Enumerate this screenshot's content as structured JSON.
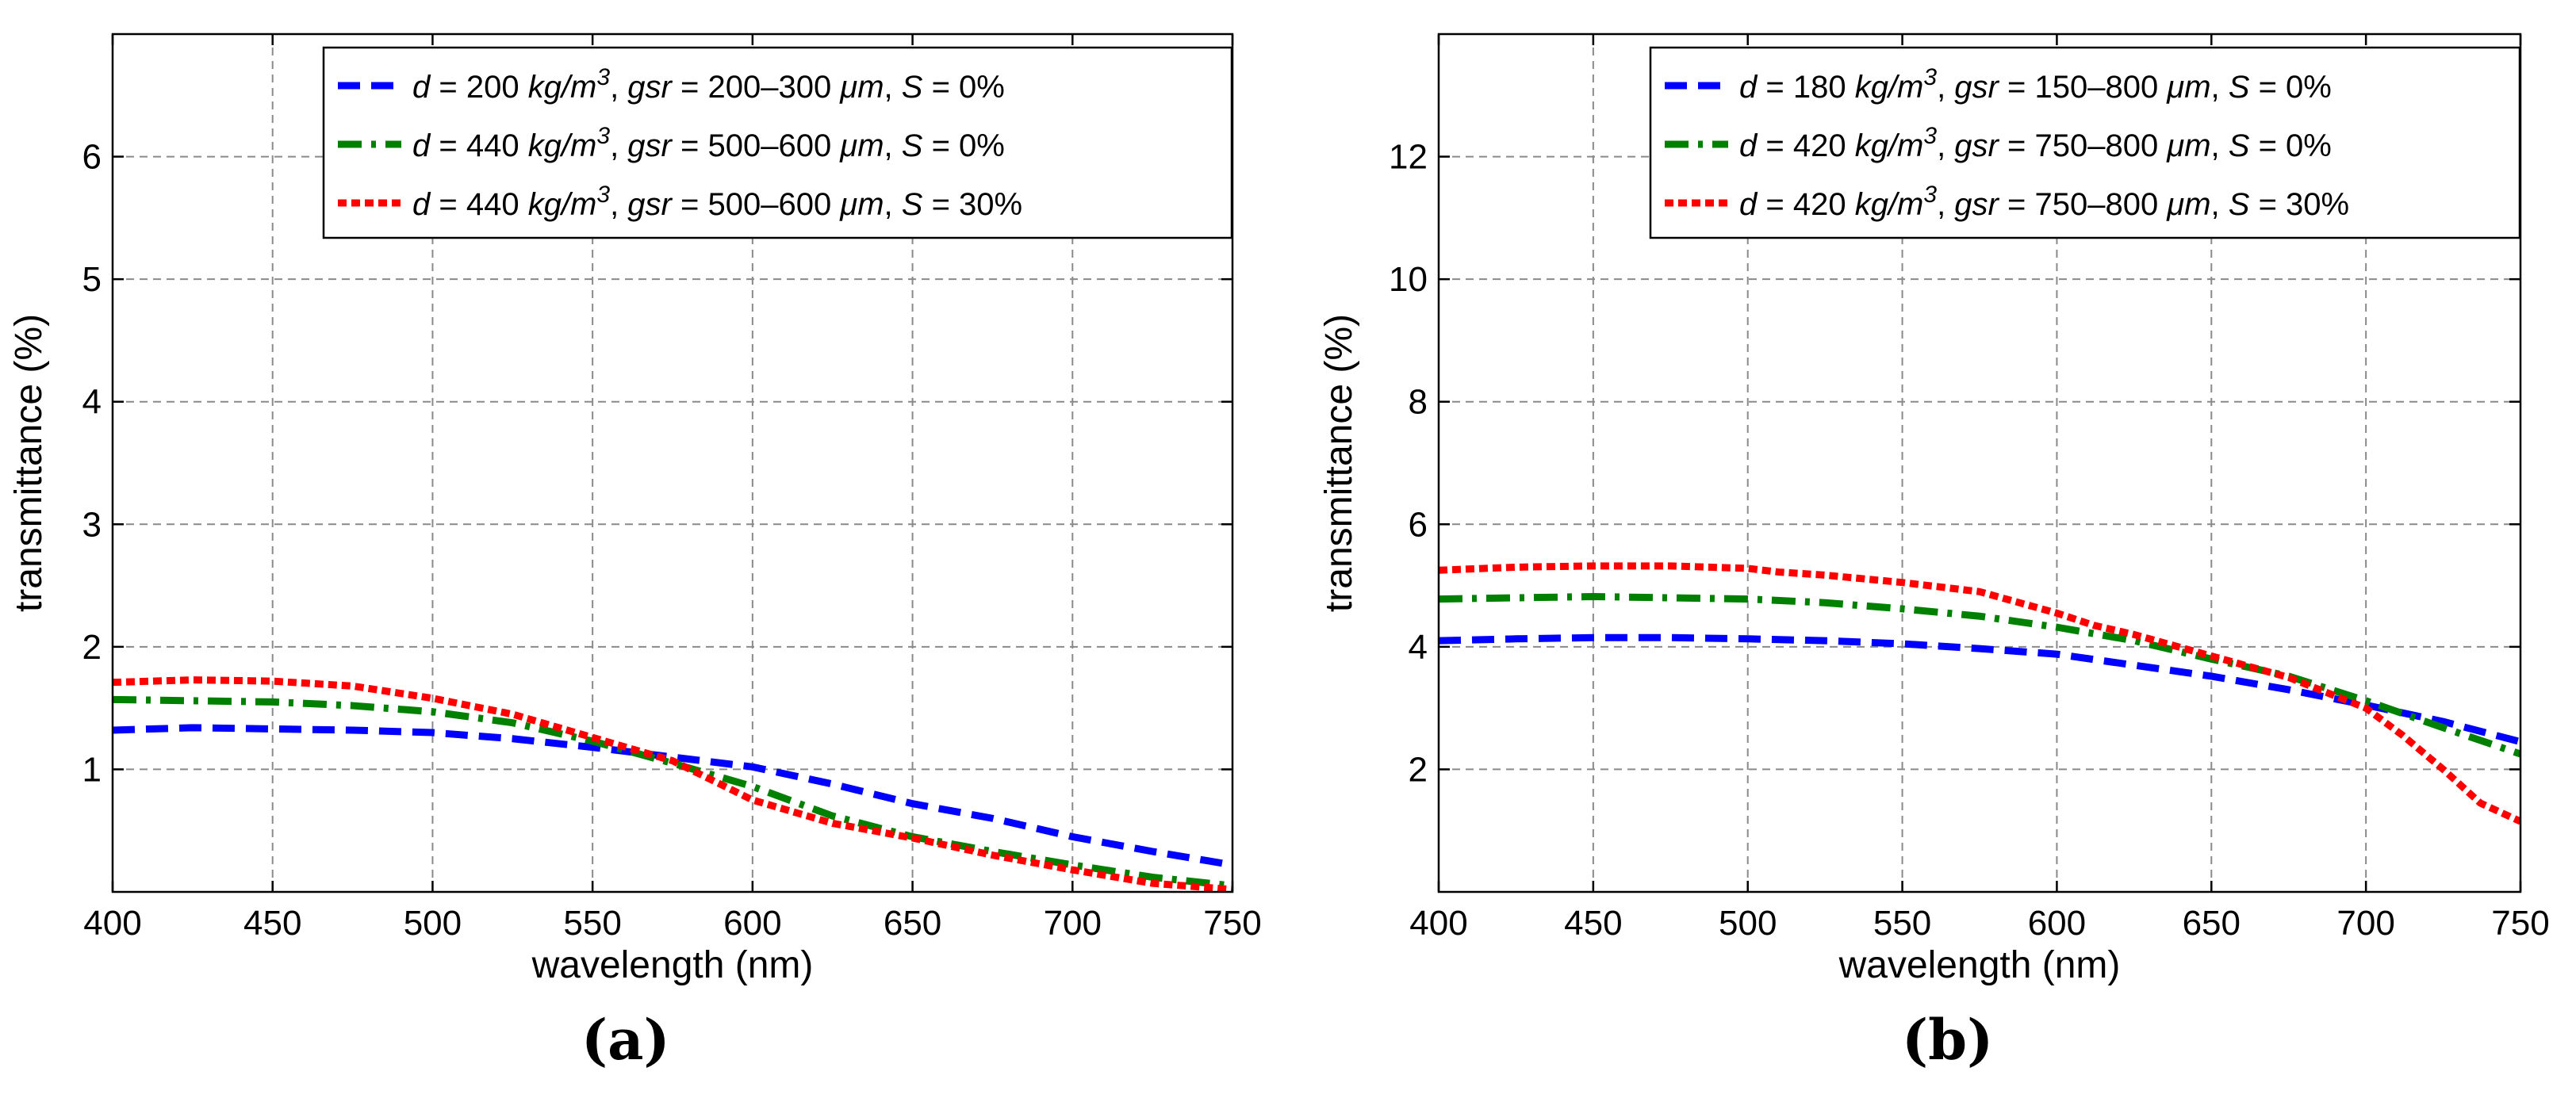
{
  "chart_data": [
    {
      "panel": "a",
      "type": "line",
      "caption": "(a)",
      "xlabel": "wavelength (nm)",
      "ylabel": "transmittance (%)",
      "xlim": [
        400,
        750
      ],
      "ylim": [
        0,
        7
      ],
      "xticks": [
        400,
        450,
        500,
        550,
        600,
        650,
        700,
        750
      ],
      "yticks": [
        1,
        2,
        3,
        4,
        5,
        6
      ],
      "grid": true,
      "legend_position": "top-right",
      "series": [
        {
          "legend": {
            "d": "200",
            "gsr": "200–300",
            "S": "0%"
          },
          "color": "#0000ff",
          "style": "dashed",
          "x": [
            400,
            425,
            450,
            475,
            500,
            525,
            550,
            575,
            600,
            625,
            650,
            675,
            700,
            725,
            750
          ],
          "y": [
            1.32,
            1.34,
            1.33,
            1.32,
            1.3,
            1.25,
            1.18,
            1.1,
            1.02,
            0.88,
            0.72,
            0.6,
            0.45,
            0.33,
            0.22
          ]
        },
        {
          "legend": {
            "d": "440",
            "gsr": "500–600",
            "S": "0%"
          },
          "color": "#008000",
          "style": "dashdot",
          "x": [
            400,
            425,
            450,
            475,
            500,
            525,
            550,
            575,
            600,
            625,
            650,
            675,
            700,
            725,
            750
          ],
          "y": [
            1.57,
            1.56,
            1.55,
            1.52,
            1.47,
            1.38,
            1.23,
            1.05,
            0.86,
            0.62,
            0.45,
            0.33,
            0.22,
            0.12,
            0.05
          ]
        },
        {
          "legend": {
            "d": "440",
            "gsr": "500–600",
            "S": "30%"
          },
          "color": "#ff0000",
          "style": "dotted",
          "x": [
            400,
            425,
            450,
            475,
            500,
            525,
            550,
            575,
            600,
            625,
            650,
            675,
            700,
            725,
            750
          ],
          "y": [
            1.71,
            1.73,
            1.72,
            1.68,
            1.58,
            1.45,
            1.26,
            1.07,
            0.75,
            0.56,
            0.44,
            0.3,
            0.18,
            0.07,
            0.02
          ]
        }
      ]
    },
    {
      "panel": "b",
      "type": "line",
      "caption": "(b)",
      "xlabel": "wavelength (nm)",
      "ylabel": "transmittance (%)",
      "xlim": [
        400,
        750
      ],
      "ylim": [
        0,
        14
      ],
      "xticks": [
        400,
        450,
        500,
        550,
        600,
        650,
        700,
        750
      ],
      "yticks": [
        2,
        4,
        6,
        8,
        10,
        12
      ],
      "grid": true,
      "legend_position": "top-right",
      "series": [
        {
          "legend": {
            "d": "180",
            "gsr": "150–800",
            "S": "0%"
          },
          "color": "#0000ff",
          "style": "dashed",
          "x": [
            400,
            425,
            450,
            475,
            500,
            525,
            550,
            575,
            600,
            625,
            650,
            675,
            700,
            725,
            750
          ],
          "y": [
            4.1,
            4.13,
            4.15,
            4.15,
            4.13,
            4.1,
            4.05,
            3.97,
            3.88,
            3.7,
            3.52,
            3.3,
            3.05,
            2.78,
            2.45
          ]
        },
        {
          "legend": {
            "d": "420",
            "gsr": "750–800",
            "S": "0%"
          },
          "color": "#008000",
          "style": "dashdot",
          "x": [
            400,
            425,
            450,
            475,
            500,
            525,
            550,
            575,
            600,
            625,
            650,
            675,
            700,
            725,
            750
          ],
          "y": [
            4.78,
            4.8,
            4.82,
            4.8,
            4.78,
            4.72,
            4.62,
            4.5,
            4.32,
            4.1,
            3.8,
            3.52,
            3.12,
            2.68,
            2.25
          ]
        },
        {
          "legend": {
            "d": "420",
            "gsr": "750–800",
            "S": "30%"
          },
          "color": "#ff0000",
          "style": "dotted",
          "x": [
            400,
            425,
            450,
            475,
            500,
            510,
            525,
            550,
            575,
            600,
            612,
            625,
            650,
            675,
            700,
            712,
            725,
            737,
            750
          ],
          "y": [
            5.25,
            5.3,
            5.32,
            5.32,
            5.28,
            5.22,
            5.17,
            5.05,
            4.9,
            4.55,
            4.35,
            4.2,
            3.85,
            3.5,
            3.0,
            2.55,
            2.0,
            1.45,
            1.15
          ]
        }
      ]
    }
  ],
  "legend_text": {
    "eq": " = ",
    "sep": ", ",
    "d_sym": "d",
    "d_unit": "kg/m",
    "d_exp": "3",
    "gsr_sym": "gsr",
    "gsr_unit": "μm",
    "s_sym": "S"
  }
}
